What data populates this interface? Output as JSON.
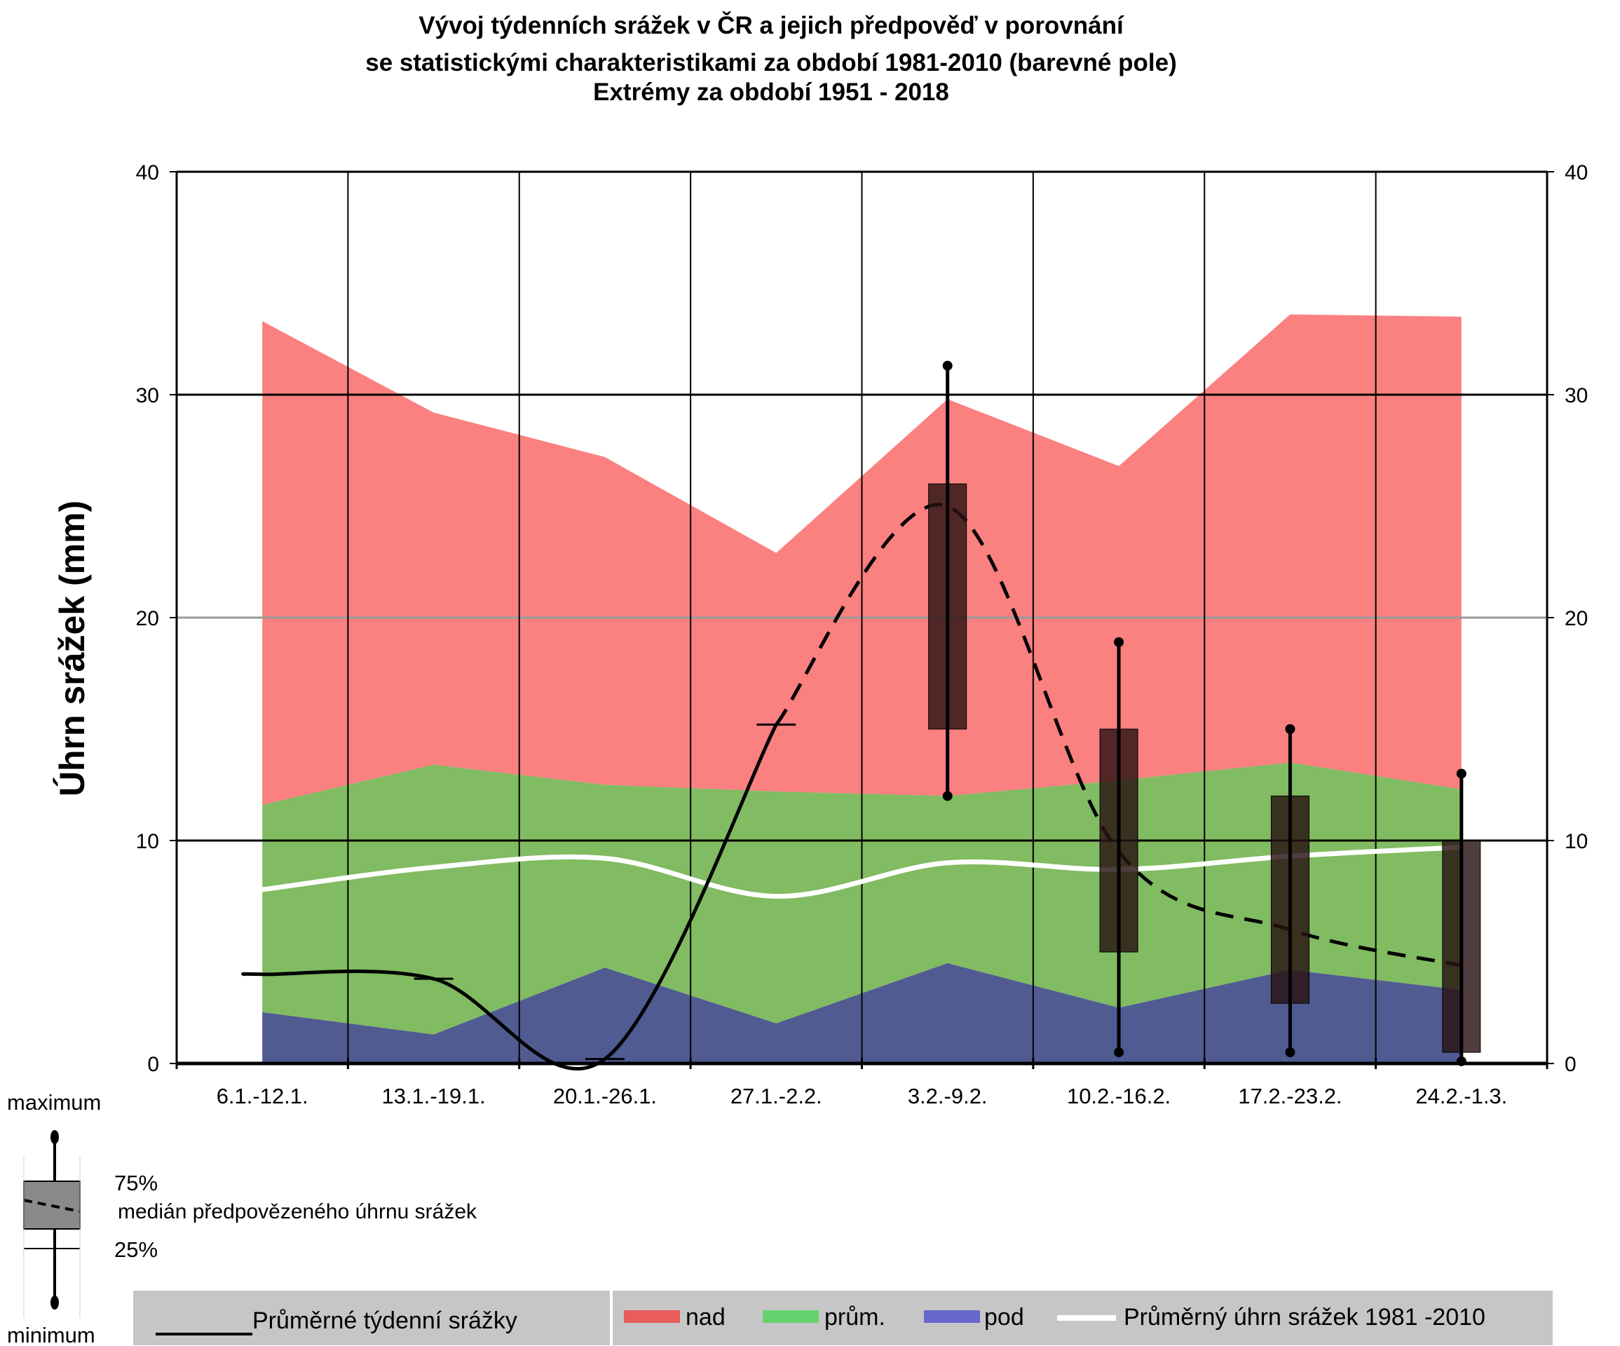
{
  "chart_data": {
    "type": "area",
    "title_lines": [
      "Vývoj týdenních srážek v ČR a jejich předpověď v porovnání",
      "se statistickými charakteristikami za období 1981-2010 (barevné pole)",
      "Extrémy za období 1951 - 2018"
    ],
    "ylabel": "Úhrn srážek (mm)",
    "ylim": [
      0,
      40
    ],
    "yticks": [
      0,
      10,
      20,
      30,
      40
    ],
    "grid": true,
    "categories": [
      "6.1.-12.1.",
      "13.1.-19.1.",
      "20.1.-26.1.",
      "27.1.-2.2.",
      "3.2.-9.2.",
      "10.2.-16.2.",
      "17.2.-23.2.",
      "24.2.-1.3."
    ],
    "bands": {
      "pod": [
        2.3,
        1.3,
        4.3,
        1.8,
        4.5,
        2.5,
        4.2,
        3.3
      ],
      "prum": [
        11.6,
        13.4,
        12.5,
        12.2,
        12.0,
        12.7,
        13.5,
        12.3
      ],
      "nad": [
        33.3,
        29.2,
        27.2,
        22.9,
        29.8,
        26.8,
        33.6,
        33.5
      ]
    },
    "series": [
      {
        "name": "Průměrné týdenní srážky",
        "values": [
          4.0,
          3.8,
          0.2,
          15.2,
          null,
          null,
          null,
          null
        ]
      },
      {
        "name": "Průměrný úhrn srážek 1981 -2010",
        "values": [
          7.8,
          8.8,
          9.2,
          7.5,
          9.0,
          8.7,
          9.3,
          9.7
        ]
      },
      {
        "name": "medián předpovězeného úhrnu srážek",
        "values": [
          null,
          null,
          null,
          15.2,
          25.0,
          9.5,
          6.0,
          4.4
        ]
      }
    ],
    "forecast_boxes": [
      {
        "category": "3.2.-9.2.",
        "min": 12.0,
        "q25": 15.0,
        "q75": 26.0,
        "max": 31.3
      },
      {
        "category": "10.2.-16.2.",
        "min": 0.5,
        "q25": 5.0,
        "q75": 15.0,
        "max": 18.9
      },
      {
        "category": "17.2.-23.2.",
        "min": 0.5,
        "q25": 2.7,
        "q75": 12.0,
        "max": 15.0
      },
      {
        "category": "24.2.-1.3.",
        "min": 0.1,
        "q25": 0.5,
        "q75": 10.0,
        "max": 13.0
      }
    ],
    "colors": {
      "nad": "#fb8080",
      "prum": "#81bb62",
      "pod": "#505b92",
      "mean_line": "#ffffff",
      "observed_line": "#000000",
      "box_fill": "#2a1212"
    }
  },
  "key": {
    "maximum": "maximum",
    "q75": "75%",
    "median": "medián předpovězeného úhrnu srážek",
    "q25": "25%",
    "minimum": "minimum"
  },
  "legend": {
    "observed": "Průměrné týdenní srážky",
    "nad": "nad",
    "prum": "prům.",
    "pod": "pod",
    "mean": "Průměrný úhrn srážek 1981 -2010"
  }
}
